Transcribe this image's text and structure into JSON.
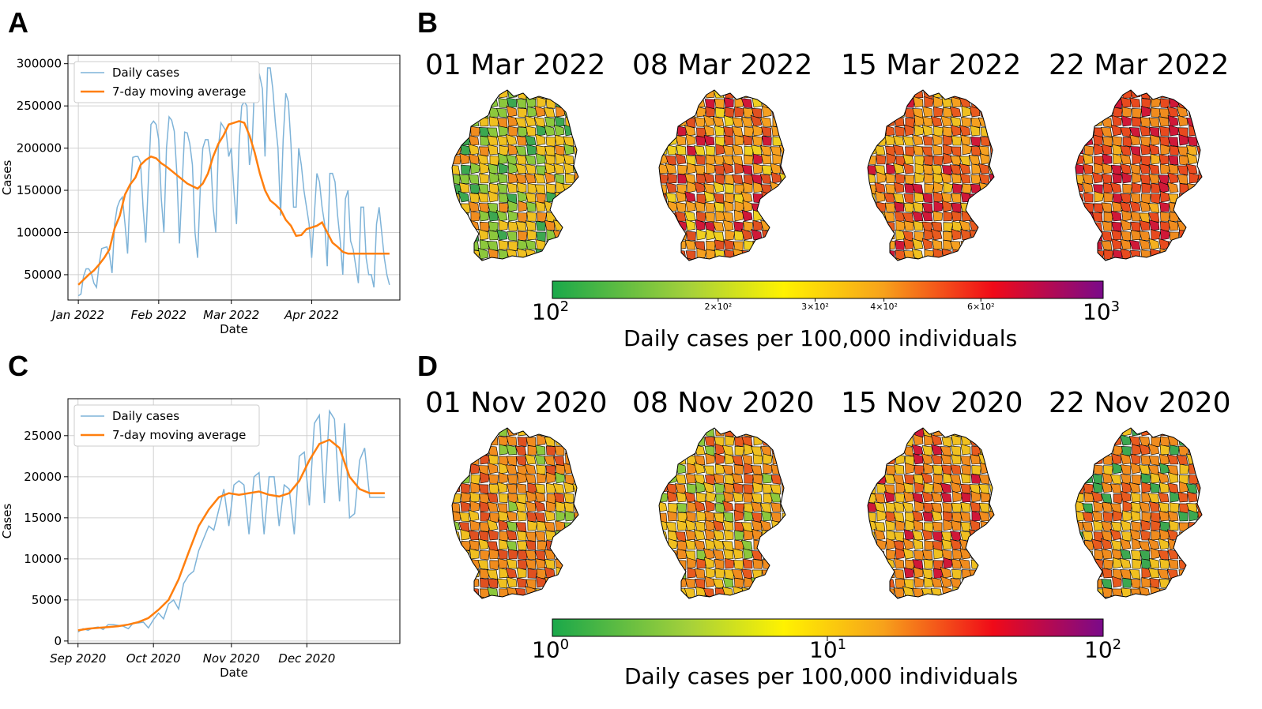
{
  "panels": {
    "A": "A",
    "B": "B",
    "C": "C",
    "D": "D"
  },
  "chart_data": [
    {
      "panel": "A",
      "type": "line",
      "xlabel": "Date",
      "ylabel": "Cases",
      "xtick_labels": [
        "Jan 2022",
        "Feb 2022",
        "Mar 2022",
        "Apr 2022"
      ],
      "xtick_days": [
        0,
        31,
        59,
        90
      ],
      "ytick_values": [
        50000,
        100000,
        150000,
        200000,
        250000,
        300000
      ],
      "ytick_labels": [
        "50000",
        "100000",
        "150000",
        "200000",
        "250000",
        "300000"
      ],
      "ylim": [
        20000,
        310000
      ],
      "xlim": [
        -4,
        124
      ],
      "legend": {
        "placement": "top-left",
        "entries": [
          "Daily cases",
          "7-day moving average"
        ]
      },
      "series": [
        {
          "name": "Daily cases",
          "color": "#7eb3d8",
          "x": [
            0,
            1,
            2,
            3,
            4,
            5,
            6,
            7,
            8,
            9,
            10,
            11,
            12,
            13,
            14,
            15,
            16,
            17,
            18,
            19,
            20,
            21,
            22,
            23,
            24,
            25,
            26,
            27,
            28,
            29,
            30,
            31,
            32,
            33,
            34,
            35,
            36,
            37,
            38,
            39,
            40,
            41,
            42,
            43,
            44,
            45,
            46,
            47,
            48,
            49,
            50,
            51,
            52,
            53,
            54,
            55,
            56,
            57,
            58,
            59,
            60,
            61,
            62,
            63,
            64,
            65,
            66,
            67,
            68,
            69,
            70,
            71,
            72,
            73,
            74,
            75,
            76,
            77,
            78,
            79,
            80,
            81,
            82,
            83,
            84,
            85,
            86,
            87,
            88,
            89,
            90,
            91,
            92,
            93,
            94,
            95,
            96,
            97,
            98,
            99,
            100,
            101,
            102,
            103,
            104,
            105,
            106,
            107,
            108,
            109,
            110,
            111,
            112,
            113,
            114,
            115,
            116,
            117,
            118,
            119,
            120
          ],
          "values": [
            25000,
            27000,
            48000,
            57000,
            57000,
            52000,
            40000,
            35000,
            62000,
            81000,
            82000,
            83000,
            74000,
            52000,
            110000,
            130000,
            138000,
            142000,
            110000,
            75000,
            150000,
            189000,
            190000,
            190000,
            183000,
            128000,
            88000,
            160000,
            228000,
            232000,
            228000,
            210000,
            140000,
            100000,
            200000,
            237000,
            233000,
            220000,
            170000,
            87000,
            155000,
            219000,
            218000,
            205000,
            180000,
            100000,
            70000,
            150000,
            200000,
            210000,
            210000,
            190000,
            130000,
            100000,
            200000,
            230000,
            225000,
            220000,
            190000,
            200000,
            150000,
            110000,
            205000,
            250000,
            255000,
            250000,
            180000,
            200000,
            280000,
            298000,
            285000,
            270000,
            190000,
            295000,
            295000,
            270000,
            230000,
            200000,
            120000,
            210000,
            265000,
            255000,
            205000,
            130000,
            130000,
            200000,
            180000,
            150000,
            130000,
            110000,
            70000,
            120000,
            170000,
            160000,
            130000,
            110000,
            60000,
            170000,
            170000,
            160000,
            120000,
            90000,
            50000,
            140000,
            150000,
            90000,
            80000,
            60000,
            40000,
            130000,
            130000,
            70000,
            50000,
            50000,
            35000,
            110000,
            130000,
            100000,
            70000,
            50000,
            38000
          ]
        },
        {
          "name": "7-day moving average",
          "color": "#ff7f0e",
          "x": [
            0,
            2,
            4,
            6,
            8,
            10,
            12,
            14,
            16,
            18,
            20,
            22,
            24,
            26,
            28,
            30,
            32,
            34,
            36,
            38,
            40,
            42,
            44,
            46,
            48,
            50,
            52,
            54,
            56,
            58,
            60,
            62,
            64,
            66,
            68,
            70,
            72,
            74,
            76,
            78,
            80,
            82,
            84,
            86,
            88,
            90,
            92,
            94,
            96,
            98,
            100,
            102,
            104,
            106,
            108,
            110,
            112,
            114,
            116,
            118,
            120
          ],
          "values": [
            38000,
            44000,
            50000,
            55000,
            62000,
            70000,
            80000,
            105000,
            120000,
            145000,
            157000,
            165000,
            180000,
            186000,
            190000,
            188000,
            182000,
            178000,
            173000,
            168000,
            163000,
            158000,
            155000,
            152000,
            158000,
            170000,
            190000,
            205000,
            215000,
            228000,
            230000,
            232000,
            230000,
            215000,
            195000,
            170000,
            150000,
            138000,
            133000,
            127000,
            115000,
            108000,
            96000,
            97000,
            104000,
            106000,
            108000,
            112000,
            100000,
            88000,
            83000,
            77000,
            75000,
            75000,
            75000,
            75000,
            75000,
            75000,
            75000,
            75000,
            75000
          ]
        }
      ]
    },
    {
      "panel": "C",
      "type": "line",
      "xlabel": "Date",
      "ylabel": "Cases",
      "xtick_labels": [
        "Sep 2020",
        "Oct 2020",
        "Nov 2020",
        "Dec 2020"
      ],
      "xtick_days": [
        0,
        30,
        61,
        91
      ],
      "ytick_values": [
        0,
        5000,
        10000,
        15000,
        20000,
        25000
      ],
      "ytick_labels": [
        "0",
        "5000",
        "10000",
        "15000",
        "20000",
        "25000"
      ],
      "ylim": [
        -300,
        29500
      ],
      "xlim": [
        -4,
        128
      ],
      "legend": {
        "placement": "top-left",
        "entries": [
          "Daily cases",
          "7-day moving average"
        ]
      },
      "series": [
        {
          "name": "Daily cases",
          "color": "#7eb3d8",
          "x": [
            0,
            2,
            4,
            6,
            8,
            10,
            12,
            14,
            16,
            18,
            20,
            22,
            24,
            26,
            28,
            30,
            32,
            34,
            36,
            38,
            40,
            42,
            44,
            46,
            48,
            50,
            52,
            54,
            56,
            58,
            60,
            62,
            64,
            66,
            68,
            70,
            72,
            74,
            76,
            78,
            80,
            82,
            84,
            86,
            88,
            90,
            92,
            94,
            96,
            98,
            100,
            102,
            104,
            106,
            108,
            110,
            112,
            114,
            116,
            118,
            120,
            122
          ],
          "values": [
            1100,
            1500,
            1300,
            1600,
            1700,
            1400,
            2000,
            2000,
            1900,
            1800,
            1500,
            2200,
            2200,
            2300,
            1600,
            2600,
            3400,
            2700,
            4500,
            5000,
            3900,
            7000,
            8000,
            8500,
            11000,
            12500,
            14000,
            13500,
            16000,
            18500,
            14000,
            19000,
            19500,
            19000,
            13000,
            20000,
            20500,
            13000,
            20000,
            20000,
            14000,
            19000,
            18500,
            13000,
            22500,
            23000,
            16500,
            26500,
            27500,
            16800,
            28000,
            27000,
            17000,
            26500,
            15000,
            15500,
            22000,
            23500,
            17500,
            17500,
            17500,
            17500
          ]
        },
        {
          "name": "7-day moving average",
          "color": "#ff7f0e",
          "x": [
            0,
            4,
            8,
            12,
            16,
            20,
            24,
            28,
            32,
            36,
            40,
            44,
            48,
            52,
            56,
            60,
            64,
            68,
            72,
            76,
            80,
            84,
            88,
            92,
            96,
            100,
            104,
            108,
            112,
            116,
            120,
            122
          ],
          "values": [
            1300,
            1500,
            1600,
            1700,
            1800,
            2000,
            2300,
            2800,
            3800,
            5000,
            7500,
            10800,
            14000,
            16000,
            17500,
            18000,
            17800,
            18000,
            18200,
            17800,
            17600,
            18000,
            19500,
            22000,
            24000,
            24500,
            23500,
            20000,
            18500,
            18000,
            18000,
            18000
          ]
        }
      ]
    }
  ],
  "map_panels": {
    "B": {
      "dates": [
        "01 Mar 2022",
        "08 Mar 2022",
        "15 Mar 2022",
        "22 Mar 2022"
      ],
      "colorbar": {
        "scale": "log",
        "min_label_base": "10",
        "min_label_exp": "2",
        "max_label_base": "10",
        "max_label_exp": "3",
        "minor_labels": [
          "2×10²",
          "3×10²",
          "4×10²",
          "6×10²"
        ],
        "minor_positions": [
          0.301,
          0.477,
          0.602,
          0.778
        ],
        "label": "Daily cases per 100,000 individuals"
      },
      "palette_mix": [
        {
          "c1": "#f0c020",
          "c2": "#8cc83c",
          "c3": "#f08c1e",
          "c4": "#3ca850"
        },
        {
          "c1": "#f5a020",
          "c2": "#e05020",
          "c3": "#f0d020",
          "c4": "#d01838"
        },
        {
          "c1": "#e85a1e",
          "c2": "#f5a020",
          "c3": "#f0c020",
          "c4": "#d01838"
        },
        {
          "c1": "#e84a1e",
          "c2": "#f08c1e",
          "c3": "#d01838",
          "c4": "#f5b020"
        }
      ]
    },
    "D": {
      "dates": [
        "01 Nov 2020",
        "08 Nov 2020",
        "15 Nov 2020",
        "22 Nov 2020"
      ],
      "colorbar": {
        "scale": "log",
        "min_label_base": "10",
        "min_label_exp": "0",
        "mid_label_base": "10",
        "mid_label_exp": "1",
        "max_label_base": "10",
        "max_label_exp": "2",
        "label": "Daily cases per 100,000 individuals"
      },
      "palette_mix": [
        {
          "c1": "#f08c1e",
          "c2": "#f0c020",
          "c3": "#e05020",
          "c4": "#8cc83c"
        },
        {
          "c1": "#f0c020",
          "c2": "#f08c1e",
          "c3": "#e85a1e",
          "c4": "#8cc83c"
        },
        {
          "c1": "#f08c1e",
          "c2": "#f0c020",
          "c3": "#e85a1e",
          "c4": "#d01838"
        },
        {
          "c1": "#f08c1e",
          "c2": "#e85a1e",
          "c3": "#f0c020",
          "c4": "#3ca850"
        }
      ]
    }
  }
}
